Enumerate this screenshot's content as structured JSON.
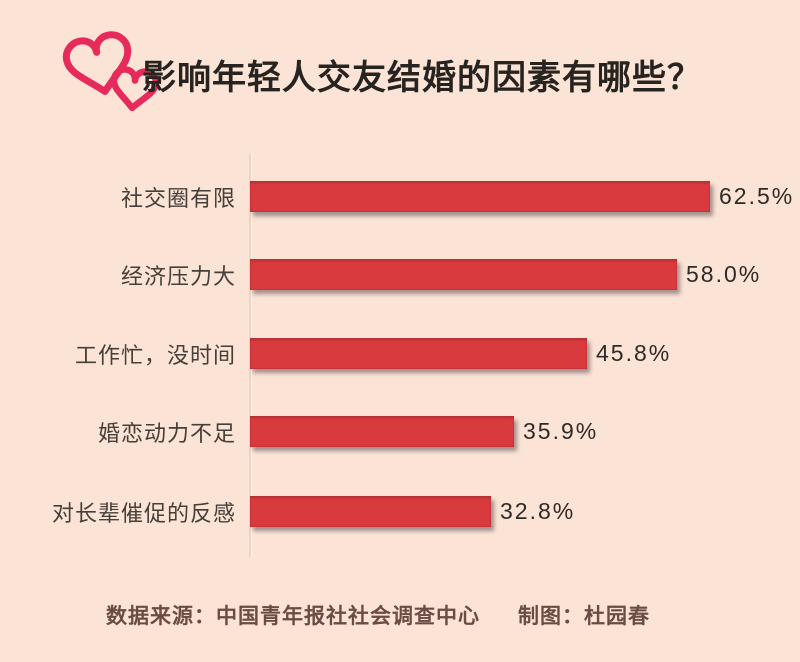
{
  "page": {
    "background": "#fbe4d5"
  },
  "header": {
    "title": "影响年轻人交友结婚的因素有哪些？",
    "icon": "double-heart-icon",
    "icon_color": "#e72a5c",
    "title_color": "#272320"
  },
  "chart_data": {
    "type": "bar",
    "orientation": "horizontal",
    "title": "影响年轻人交友结婚的因素有哪些？",
    "categories": [
      "社交圈有限",
      "经济压力大",
      "工作忙，没时间",
      "婚恋动力不足",
      "对长辈催促的反感"
    ],
    "values": [
      62.5,
      58.0,
      45.8,
      35.9,
      32.8
    ],
    "value_labels": [
      "62.5%",
      "58.0%",
      "45.8%",
      "35.9%",
      "32.8%"
    ],
    "unit": "%",
    "bar_color": "#d93a3e",
    "xlim": [
      0,
      68
    ],
    "grid": false,
    "legend": "none"
  },
  "footer": {
    "source": "数据来源：中国青年报社社会调查中心",
    "credit": "制图：杜园春"
  }
}
